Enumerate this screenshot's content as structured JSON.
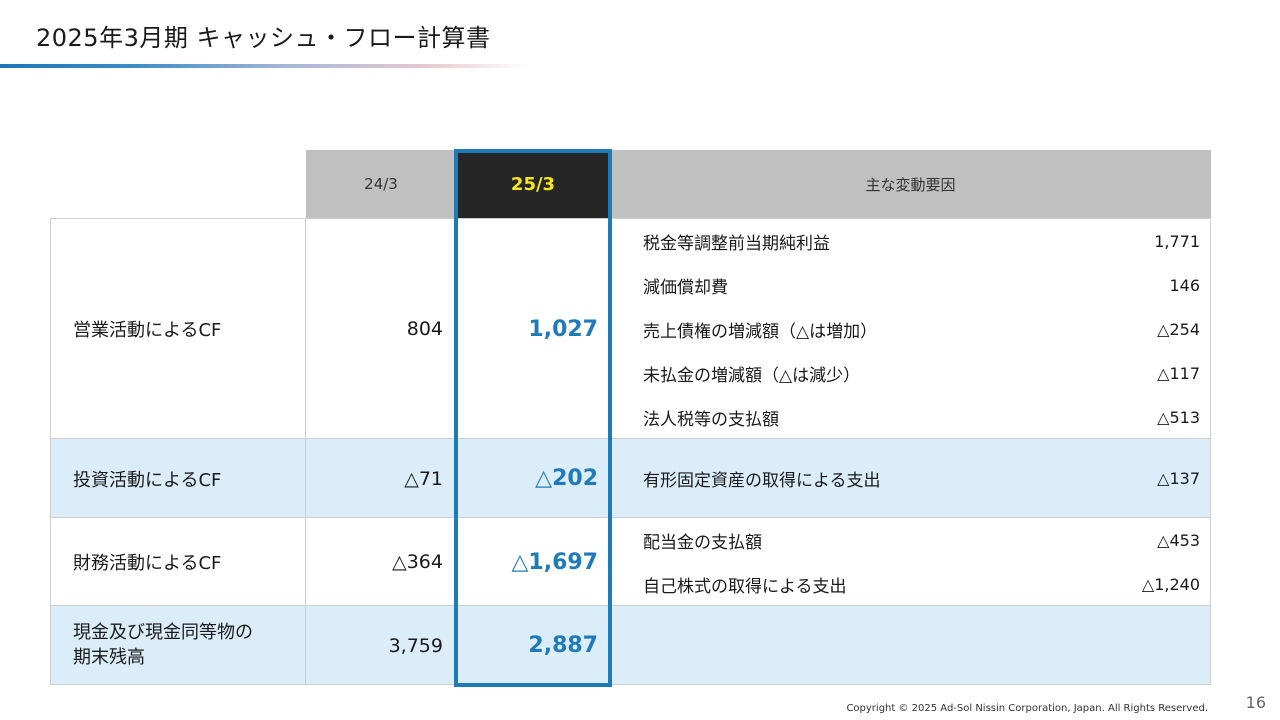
{
  "title": "2025年3月期  キャッシュ・フロー計算書",
  "header": {
    "col_prev": "24/3",
    "col_curr": "25/3",
    "col_factors": "主な変動要因"
  },
  "rows": [
    {
      "label": "営業活動によるCF",
      "prev": "804",
      "curr": "1,027",
      "factors": [
        {
          "name": "税金等調整前当期純利益",
          "value": "1,771"
        },
        {
          "name": "減価償却費",
          "value": "146"
        },
        {
          "name": "売上債権の増減額（△は増加）",
          "value": "△254"
        },
        {
          "name": "未払金の増減額（△は減少）",
          "value": "△117"
        },
        {
          "name": "法人税等の支払額",
          "value": "△513"
        }
      ]
    },
    {
      "label": "投資活動によるCF",
      "prev": "△71",
      "curr": "△202",
      "factors": [
        {
          "name": "有形固定資産の取得による支出",
          "value": "△137"
        }
      ]
    },
    {
      "label": "財務活動によるCF",
      "prev": "△364",
      "curr": "△1,697",
      "factors": [
        {
          "name": "配当金の支払額",
          "value": "△453"
        },
        {
          "name": "自己株式の取得による支出",
          "value": "△1,240"
        }
      ]
    },
    {
      "label_line1": "現金及び現金同等物の",
      "label_line2": "期末残高",
      "prev": "3,759",
      "curr": "2,887"
    }
  ],
  "colors": {
    "accent": "#1f7ab8",
    "header_highlight_text": "#f5e61e",
    "row_blue": "#dcedfa"
  },
  "footer": {
    "copyright": "Copyright © 2025 Ad-Sol Nissin Corporation, Japan. All Rights Reserved.",
    "page": "16"
  }
}
